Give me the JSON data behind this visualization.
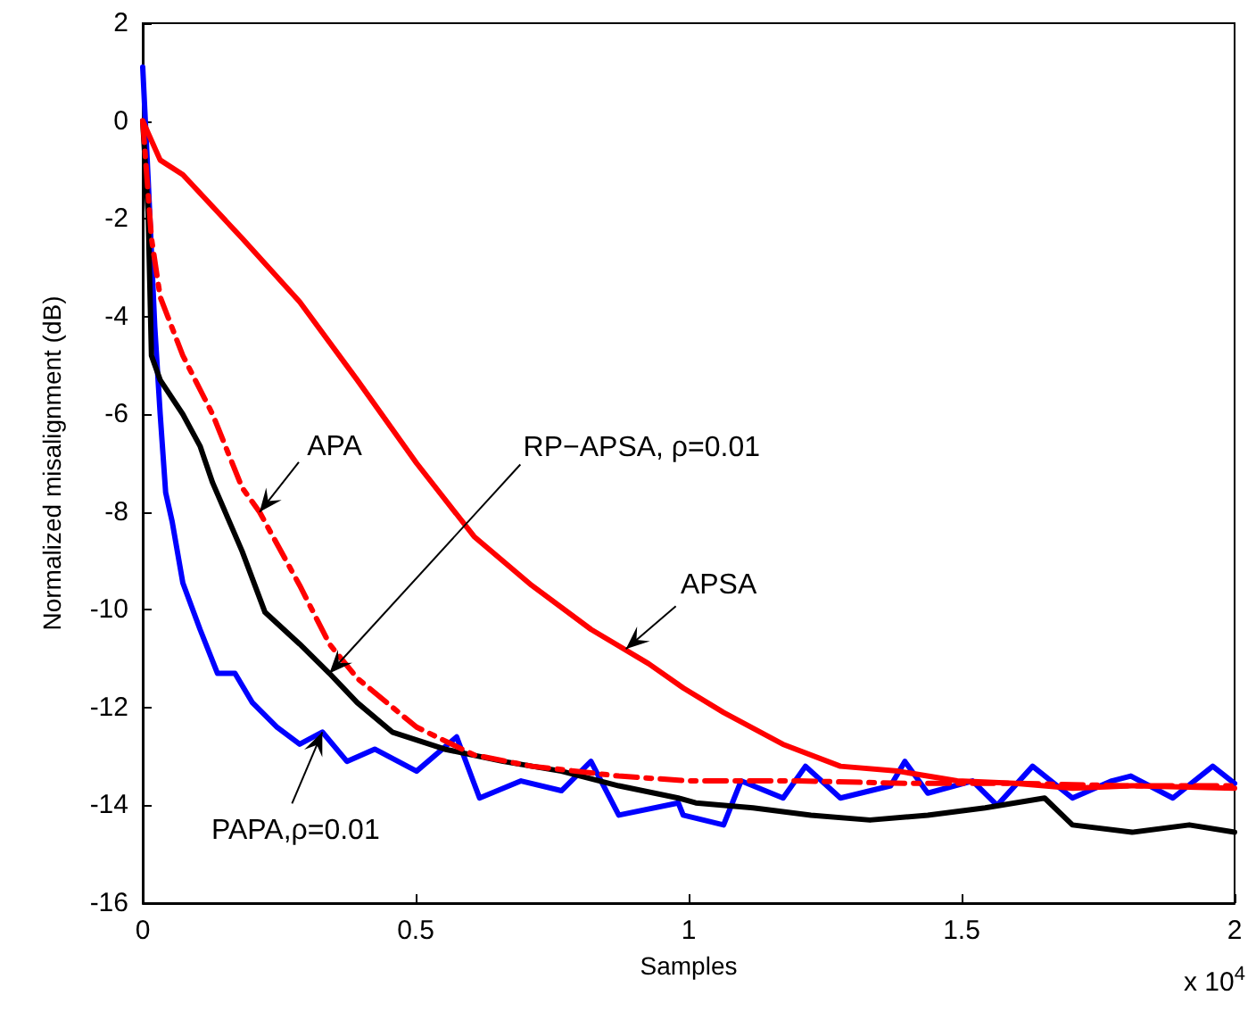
{
  "chart_data": {
    "type": "line",
    "xlabel": "Samples",
    "ylabel": "Normalized misalignment (dB)",
    "xlim": [
      0,
      2
    ],
    "xticks": [
      0,
      0.5,
      1,
      1.5,
      2
    ],
    "ylim": [
      -16,
      2
    ],
    "yticks": [
      -16,
      -14,
      -12,
      -10,
      -8,
      -6,
      -4,
      -2,
      0,
      2
    ],
    "grid": false,
    "marker": "none",
    "series": [
      {
        "color": "#ff0000",
        "line_style": "solid",
        "x": [
          0,
          0.032,
          0.0735,
          0.1821,
          0.2875,
          0.393,
          0.5016,
          0.607,
          0.7125,
          0.8211,
          0.9265,
          0.9904,
          1.064,
          1.1725,
          1.278,
          1.3834,
          1.492,
          1.5975,
          1.703,
          1.8115,
          2
        ],
        "values": [
          0,
          -0.8,
          -1.1,
          -2.4,
          -3.7,
          -5.3,
          -7.0,
          -8.5,
          -9.5,
          -10.4,
          -11.1,
          -11.6,
          -12.1,
          -12.75,
          -13.2,
          -13.3,
          -13.5,
          -13.55,
          -13.65,
          -13.6,
          -13.65
        ]
      },
      {
        "color": "#ff0000",
        "line_style": "dashed",
        "x": [
          0,
          0.016,
          0.032,
          0.0735,
          0.128,
          0.182,
          0.214,
          0.2875,
          0.342,
          0.393,
          0.5016,
          0.607,
          0.7125,
          0.872,
          1,
          1.2,
          1.4,
          1.6,
          1.8,
          2
        ],
        "values": [
          0,
          -2.4,
          -3.6,
          -4.8,
          -6.0,
          -7.5,
          -8.0,
          -9.5,
          -10.7,
          -11.4,
          -12.4,
          -12.97,
          -13.2,
          -13.4,
          -13.5,
          -13.5,
          -13.55,
          -13.55,
          -13.6,
          -13.6
        ]
      },
      {
        "color": "#000000",
        "line_style": "solid",
        "x": [
          0,
          0.01,
          0.016,
          0.032,
          0.0735,
          0.105,
          0.128,
          0.182,
          0.224,
          0.2875,
          0.342,
          0.393,
          0.457,
          0.553,
          0.66,
          0.767,
          0.872,
          0.981,
          1.013,
          1.118,
          1.224,
          1.332,
          1.438,
          1.543,
          1.652,
          1.703,
          1.812,
          1.917,
          2
        ],
        "values": [
          0,
          -1.9,
          -4.8,
          -5.3,
          -6.0,
          -6.65,
          -7.4,
          -8.8,
          -10.05,
          -10.7,
          -11.3,
          -11.9,
          -12.5,
          -12.85,
          -13.1,
          -13.3,
          -13.6,
          -13.85,
          -13.95,
          -14.05,
          -14.2,
          -14.3,
          -14.2,
          -14.05,
          -13.85,
          -14.4,
          -14.55,
          -14.4,
          -14.55
        ]
      },
      {
        "color": "#0000ff",
        "line_style": "solid",
        "x": [
          0,
          0.01,
          0.022,
          0.032,
          0.042,
          0.054,
          0.0735,
          0.105,
          0.137,
          0.169,
          0.201,
          0.246,
          0.2875,
          0.329,
          0.374,
          0.425,
          0.5016,
          0.575,
          0.617,
          0.693,
          0.767,
          0.821,
          0.872,
          0.981,
          0.99,
          1.064,
          1.096,
          1.173,
          1.214,
          1.278,
          1.37,
          1.396,
          1.438,
          1.52,
          1.565,
          1.63,
          1.703,
          1.775,
          1.81,
          1.887,
          1.96,
          2
        ],
        "values": [
          1.1,
          -1.2,
          -4.2,
          -6.0,
          -7.6,
          -8.2,
          -9.45,
          -10.4,
          -11.3,
          -11.3,
          -11.9,
          -12.4,
          -12.75,
          -12.5,
          -13.1,
          -12.85,
          -13.3,
          -12.6,
          -13.85,
          -13.5,
          -13.7,
          -13.1,
          -14.2,
          -13.95,
          -14.2,
          -14.4,
          -13.5,
          -13.85,
          -13.2,
          -13.85,
          -13.6,
          -13.1,
          -13.75,
          -13.5,
          -14.0,
          -13.2,
          -13.85,
          -13.5,
          -13.4,
          -13.85,
          -13.2,
          -13.55
        ]
      }
    ],
    "annotations": [
      {
        "text": "APA",
        "x": 0.214,
        "y": -8.0
      },
      {
        "text": "RP−APSA, ρ=0.01",
        "x": 0.342,
        "y": -11.3
      },
      {
        "text": "APSA",
        "x": 0.885,
        "y": -10.8
      },
      {
        "text": "PAPA,ρ=0.01",
        "x": 0.329,
        "y": -12.5
      },
      "x 10$^{4}$"
    ]
  }
}
